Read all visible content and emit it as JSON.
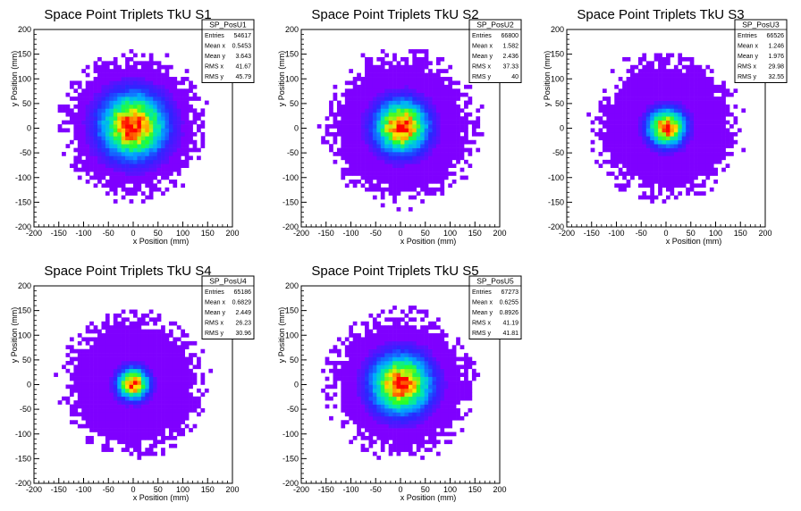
{
  "chart_data": [
    {
      "type": "heatmap",
      "title": "Space Point Triplets TkU S1",
      "xlabel": "x Position (mm)",
      "ylabel": "y Position (mm)",
      "xlim": [
        -200,
        200
      ],
      "ylim": [
        -200,
        200
      ],
      "xticks": [
        -200,
        -150,
        -100,
        -50,
        0,
        50,
        100,
        150,
        200
      ],
      "yticks": [
        -200,
        -150,
        -100,
        -50,
        0,
        50,
        100,
        150,
        200
      ],
      "grid": false,
      "colormap": "rainbow",
      "stats": {
        "name": "SP_PosU1",
        "rows": [
          {
            "label": "Entries",
            "value": "54617"
          },
          {
            "label": "Mean x",
            "value": "0.5453"
          },
          {
            "label": "Mean y",
            "value": "3.643"
          },
          {
            "label": "RMS x",
            "value": "41.67"
          },
          {
            "label": "RMS y",
            "value": "45.79"
          }
        ]
      },
      "distribution": {
        "center_x": 0,
        "center_y": 5,
        "core_sigma": 42,
        "extent_radius": 160,
        "peak_color": "#ff0000"
      }
    },
    {
      "type": "heatmap",
      "title": "Space Point Triplets TkU S2",
      "xlabel": "x Position (mm)",
      "ylabel": "y Position (mm)",
      "xlim": [
        -200,
        200
      ],
      "ylim": [
        -200,
        200
      ],
      "xticks": [
        -200,
        -150,
        -100,
        -50,
        0,
        50,
        100,
        150,
        200
      ],
      "yticks": [
        -200,
        -150,
        -100,
        -50,
        0,
        50,
        100,
        150,
        200
      ],
      "grid": false,
      "colormap": "rainbow",
      "stats": {
        "name": "SP_PosU2",
        "rows": [
          {
            "label": "Entries",
            "value": "66800"
          },
          {
            "label": "Mean x",
            "value": "1.582"
          },
          {
            "label": "Mean y",
            "value": "2.436"
          },
          {
            "label": "RMS x",
            "value": "37.33"
          },
          {
            "label": "RMS y",
            "value": "40"
          }
        ]
      },
      "distribution": {
        "center_x": 2,
        "center_y": 3,
        "core_sigma": 34,
        "extent_radius": 170,
        "peak_color": "#ff0000"
      }
    },
    {
      "type": "heatmap",
      "title": "Space Point Triplets TkU S3",
      "xlabel": "x Position (mm)",
      "ylabel": "y Position (mm)",
      "xlim": [
        -200,
        200
      ],
      "ylim": [
        -200,
        200
      ],
      "xticks": [
        -200,
        -150,
        -100,
        -50,
        0,
        50,
        100,
        150,
        200
      ],
      "yticks": [
        -200,
        -150,
        -100,
        -50,
        0,
        50,
        100,
        150,
        200
      ],
      "grid": false,
      "colormap": "rainbow",
      "stats": {
        "name": "SP_PosU3",
        "rows": [
          {
            "label": "Entries",
            "value": "66526"
          },
          {
            "label": "Mean x",
            "value": "1.246"
          },
          {
            "label": "Mean y",
            "value": "1.976"
          },
          {
            "label": "RMS x",
            "value": "29.98"
          },
          {
            "label": "RMS y",
            "value": "32.55"
          }
        ]
      },
      "distribution": {
        "center_x": 1,
        "center_y": 2,
        "core_sigma": 24,
        "extent_radius": 165,
        "peak_color": "#ff0000"
      }
    },
    {
      "type": "heatmap",
      "title": "Space Point Triplets TkU S4",
      "xlabel": "x Position (mm)",
      "ylabel": "y Position (mm)",
      "xlim": [
        -200,
        200
      ],
      "ylim": [
        -200,
        200
      ],
      "xticks": [
        -200,
        -150,
        -100,
        -50,
        0,
        50,
        100,
        150,
        200
      ],
      "yticks": [
        -200,
        -150,
        -100,
        -50,
        0,
        50,
        100,
        150,
        200
      ],
      "grid": false,
      "colormap": "rainbow",
      "stats": {
        "name": "SP_PosU4",
        "rows": [
          {
            "label": "Entries",
            "value": "65186"
          },
          {
            "label": "Mean x",
            "value": "0.6829"
          },
          {
            "label": "Mean y",
            "value": "2.449"
          },
          {
            "label": "RMS x",
            "value": "26.23"
          },
          {
            "label": "RMS y",
            "value": "30.96"
          }
        ]
      },
      "distribution": {
        "center_x": 0,
        "center_y": 2,
        "core_sigma": 20,
        "extent_radius": 160,
        "peak_color": "#ff0000"
      }
    },
    {
      "type": "heatmap",
      "title": "Space Point Triplets TkU S5",
      "xlabel": "x Position (mm)",
      "ylabel": "y Position (mm)",
      "xlim": [
        -200,
        200
      ],
      "ylim": [
        -200,
        200
      ],
      "xticks": [
        -200,
        -150,
        -100,
        -50,
        0,
        50,
        100,
        150,
        200
      ],
      "yticks": [
        -200,
        -150,
        -100,
        -50,
        0,
        50,
        100,
        150,
        200
      ],
      "grid": false,
      "colormap": "rainbow",
      "stats": {
        "name": "SP_PosU5",
        "rows": [
          {
            "label": "Entries",
            "value": "67273"
          },
          {
            "label": "Mean x",
            "value": "0.6255"
          },
          {
            "label": "Mean y",
            "value": "0.8926"
          },
          {
            "label": "RMS x",
            "value": "41.19"
          },
          {
            "label": "RMS y",
            "value": "41.81"
          }
        ]
      },
      "distribution": {
        "center_x": 1,
        "center_y": 1,
        "core_sigma": 38,
        "extent_radius": 165,
        "peak_color": "#ff0000"
      }
    }
  ],
  "colors": {
    "background": "#ffffff",
    "frame": "#000000",
    "low_bin": "#7f00ff"
  }
}
